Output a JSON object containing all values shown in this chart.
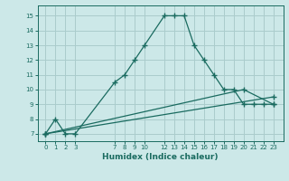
{
  "xlabel": "Humidex (Indice chaleur)",
  "bg_color": "#cce8e8",
  "grid_color": "#aacccc",
  "line_color": "#1a6b60",
  "line1_x": [
    0,
    1,
    2,
    3,
    7,
    8,
    9,
    10,
    12,
    13,
    14,
    15,
    16,
    17,
    18,
    19,
    20,
    21,
    22,
    23
  ],
  "line1_y": [
    7,
    8,
    7,
    7,
    10.5,
    11,
    12,
    13,
    15,
    15,
    15,
    13,
    12,
    11,
    10,
    10,
    9,
    9,
    9,
    9
  ],
  "line2_x": [
    0,
    23
  ],
  "line2_y": [
    7,
    9.5
  ],
  "line3_x": [
    0,
    20,
    23
  ],
  "line3_y": [
    7,
    10,
    9
  ],
  "xlim": [
    -0.8,
    24.0
  ],
  "ylim": [
    6.5,
    15.7
  ],
  "yticks": [
    7,
    8,
    9,
    10,
    11,
    12,
    13,
    14,
    15
  ],
  "xtick_positions": [
    0,
    1,
    2,
    3,
    7,
    8,
    9,
    10,
    12,
    13,
    14,
    15,
    16,
    17,
    18,
    19,
    20,
    21,
    22,
    23
  ],
  "xtick_labels": [
    "0",
    "1",
    "2",
    "3",
    "7",
    "8",
    "9",
    "10",
    "12",
    "13",
    "14",
    "15",
    "16",
    "17",
    "18",
    "19",
    "20",
    "21",
    "22",
    "23"
  ]
}
